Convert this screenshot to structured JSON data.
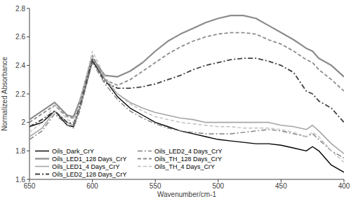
{
  "chart_data": {
    "type": "line",
    "x_label": "Wavenumber/cm-1",
    "y_label": "Normalized Absorbance",
    "x": [
      650,
      640,
      630,
      620,
      615,
      610,
      600,
      590,
      580,
      570,
      560,
      550,
      540,
      530,
      520,
      510,
      500,
      490,
      480,
      470,
      460,
      450,
      440,
      430,
      425,
      420,
      410,
      400
    ],
    "xlim": [
      650,
      400
    ],
    "xticks": [
      650,
      600,
      550,
      500,
      450,
      400
    ],
    "ylim": [
      1.6,
      2.8
    ],
    "yticks": [
      1.6,
      1.8,
      2,
      2.2,
      2.4,
      2.6,
      2.8
    ],
    "grid": false,
    "legend": "lower left",
    "series": [
      {
        "name": "Oils_Dark_CrY",
        "color": "#000000",
        "line_style": "solid",
        "values": [
          1.97,
          2.0,
          2.08,
          1.98,
          1.97,
          2.1,
          2.43,
          2.3,
          2.18,
          2.1,
          2.05,
          2.0,
          1.97,
          1.94,
          1.92,
          1.9,
          1.88,
          1.87,
          1.86,
          1.85,
          1.85,
          1.84,
          1.82,
          1.8,
          1.83,
          1.8,
          1.7,
          1.65
        ]
      },
      {
        "name": "Oils_LED1_128 Days_CrY",
        "color": "#8c8c8c",
        "line_style": "solid",
        "values": [
          2.02,
          2.08,
          2.14,
          2.05,
          2.04,
          2.15,
          2.45,
          2.33,
          2.32,
          2.36,
          2.42,
          2.5,
          2.57,
          2.62,
          2.66,
          2.7,
          2.73,
          2.75,
          2.75,
          2.73,
          2.68,
          2.63,
          2.58,
          2.52,
          2.5,
          2.45,
          2.4,
          2.32
        ]
      },
      {
        "name": "Oils_LED1_4 Days_CrY",
        "color": "#a6a6a6",
        "line_style": "solid",
        "values": [
          1.9,
          1.96,
          2.08,
          2.0,
          1.98,
          2.1,
          2.45,
          2.3,
          2.2,
          2.14,
          2.1,
          2.07,
          2.05,
          2.03,
          2.02,
          2.0,
          2.0,
          2.0,
          2.0,
          2.0,
          2.0,
          1.98,
          1.97,
          1.95,
          1.98,
          1.94,
          1.85,
          1.78
        ]
      },
      {
        "name": "Oils_LED2_128 Days_CrY",
        "color": "#404040",
        "line_style": "dash-dot",
        "values": [
          1.97,
          2.02,
          2.08,
          2.0,
          1.99,
          2.12,
          2.44,
          2.28,
          2.24,
          2.24,
          2.25,
          2.27,
          2.3,
          2.33,
          2.37,
          2.4,
          2.42,
          2.44,
          2.45,
          2.45,
          2.43,
          2.4,
          2.35,
          2.22,
          2.2,
          2.15,
          2.1,
          2.0
        ]
      },
      {
        "name": "Oils_LED2_4 Days_CrY",
        "color": "#7f7f7f",
        "line_style": "dash-dot",
        "values": [
          1.88,
          1.94,
          2.06,
          1.98,
          1.96,
          2.08,
          2.42,
          2.27,
          2.16,
          2.08,
          2.03,
          1.99,
          1.96,
          1.94,
          1.93,
          1.92,
          1.92,
          1.92,
          1.93,
          1.94,
          1.95,
          1.94,
          1.92,
          1.9,
          1.92,
          1.88,
          1.8,
          1.75
        ]
      },
      {
        "name": "Oils_TH_128 Days_CrY",
        "color": "#8c8c8c",
        "line_style": "dashed",
        "values": [
          2.0,
          2.06,
          2.12,
          2.04,
          2.03,
          2.15,
          2.47,
          2.3,
          2.26,
          2.3,
          2.36,
          2.42,
          2.48,
          2.53,
          2.57,
          2.6,
          2.62,
          2.63,
          2.63,
          2.62,
          2.58,
          2.55,
          2.5,
          2.44,
          2.42,
          2.37,
          2.3,
          2.22
        ]
      },
      {
        "name": "Oils_TH_4 Days_CrY",
        "color": "#bfbfbf",
        "line_style": "dashed",
        "values": [
          1.93,
          2.0,
          2.12,
          2.02,
          2.0,
          2.14,
          2.5,
          2.32,
          2.2,
          2.13,
          2.08,
          2.04,
          2.02,
          2.0,
          1.99,
          1.98,
          1.97,
          1.97,
          1.96,
          1.96,
          1.96,
          1.95,
          1.93,
          1.9,
          1.93,
          1.9,
          1.8,
          1.72
        ]
      }
    ]
  }
}
